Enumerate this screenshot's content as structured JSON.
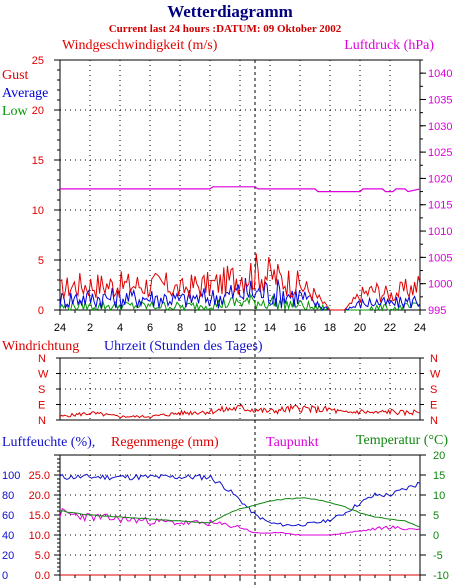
{
  "header": {
    "title": "Wetterdiagramm",
    "subtitle": "Current last 24 hours :DATUM: 09 Oktober 2002"
  },
  "colors": {
    "gust": "#e00000",
    "average": "#0000dd",
    "low": "#009900",
    "pressure": "#dd00dd",
    "direction": "#dd0000",
    "humidity": "#1010cc",
    "rain": "#dd0000",
    "dewpoint": "#dd00dd",
    "temperature": "#118811"
  },
  "chart_data": [
    {
      "type": "line",
      "panel": "wind-pressure",
      "title_left": "Windgeschwindigkeit (m/s)",
      "title_right": "Luftdruck (hPa)",
      "legend": [
        "Gust",
        "Average",
        "Low"
      ],
      "xlabel": "Uhrzeit (Stunden des Tages)",
      "x_ticks": [
        "24",
        "2",
        "4",
        "6",
        "8",
        "10",
        "12",
        "14",
        "16",
        "18",
        "20",
        "22",
        "24"
      ],
      "x_range_hours": [
        0,
        24
      ],
      "ylim_left": [
        0,
        25
      ],
      "ylim_right": [
        995,
        1042.5
      ],
      "y_ticks_left": [
        "0",
        "5",
        "10",
        "15",
        "20",
        "25"
      ],
      "y_ticks_right": [
        "995",
        "1000",
        "1005",
        "1010",
        "1015",
        "1020",
        "1025",
        "1030",
        "1035",
        "1040"
      ],
      "grid": true,
      "series": [
        {
          "name": "Gust",
          "x": [
            0,
            1,
            2,
            3,
            4,
            5,
            6,
            7,
            8,
            9,
            10,
            11,
            12,
            13,
            14,
            15,
            16,
            17,
            18,
            19,
            20,
            21,
            22,
            23,
            24
          ],
          "values": [
            2,
            2.5,
            2.5,
            2.5,
            2.5,
            2.5,
            2.5,
            2.5,
            2,
            2.5,
            2.5,
            2.8,
            3.5,
            3.8,
            3.5,
            3,
            2.5,
            1.5,
            0,
            0,
            1.5,
            2,
            1.5,
            2,
            2.5
          ]
        },
        {
          "name": "Average",
          "x": [
            0,
            1,
            2,
            3,
            4,
            5,
            6,
            7,
            8,
            9,
            10,
            11,
            12,
            13,
            14,
            15,
            16,
            17,
            18,
            19,
            20,
            21,
            22,
            23,
            24
          ],
          "values": [
            1,
            1.2,
            1.2,
            1.2,
            1.2,
            1.2,
            1.2,
            1.2,
            1,
            1.2,
            1.2,
            1.4,
            1.8,
            1.8,
            1.8,
            1.6,
            1.4,
            0.6,
            0,
            0,
            0.6,
            0.8,
            0.6,
            0.8,
            1
          ]
        },
        {
          "name": "Low",
          "x": [
            0,
            1,
            2,
            3,
            4,
            5,
            6,
            7,
            8,
            9,
            10,
            11,
            12,
            13,
            14,
            15,
            16,
            17,
            18,
            19,
            20,
            21,
            22,
            23,
            24
          ],
          "values": [
            0.3,
            0.4,
            0.4,
            0.4,
            0.4,
            0.4,
            0.4,
            0.4,
            0.3,
            0.4,
            0.5,
            0.6,
            0.8,
            0.8,
            0.8,
            0.6,
            0.5,
            0.2,
            0,
            0,
            0,
            0.2,
            0,
            0.2,
            0.3
          ]
        },
        {
          "name": "Luftdruck",
          "axis": "right",
          "x": [
            0,
            10,
            10.2,
            13,
            13.2,
            17,
            17.2,
            20,
            20.2,
            21.5,
            21.7,
            22.2,
            22.4,
            23,
            23.2,
            24
          ],
          "values": [
            1018,
            1018,
            1018.4,
            1018.4,
            1018,
            1018,
            1017.5,
            1017.5,
            1018,
            1018,
            1017.5,
            1017.5,
            1018,
            1018,
            1017.5,
            1018
          ]
        }
      ]
    },
    {
      "type": "line",
      "panel": "wind-direction",
      "title": "Windrichtung",
      "y_ticks": [
        "N",
        "W",
        "S",
        "E",
        "N"
      ],
      "x_range_hours": [
        0,
        24
      ],
      "grid": true,
      "series": [
        {
          "name": "Windrichtung",
          "x": [
            0,
            2,
            4,
            6,
            8,
            10,
            11,
            12,
            13,
            14,
            15,
            16,
            17,
            18,
            19,
            20,
            21,
            22,
            23,
            24
          ],
          "values": [
            20,
            40,
            20,
            20,
            40,
            50,
            60,
            70,
            60,
            50,
            60,
            70,
            60,
            60,
            40,
            50,
            40,
            50,
            40,
            50
          ]
        }
      ]
    },
    {
      "type": "line",
      "panel": "humidity-rain-temperature",
      "title_left": "Luftfeuchte (%),",
      "title_mid": "Regenmenge (mm)",
      "title_dew": "Taupunkt",
      "title_right": "Temperatur (°C)",
      "y_ticks_humidity": [
        "0",
        "20",
        "40",
        "60",
        "80",
        "100"
      ],
      "y_ticks_rain": [
        "0.0",
        "5.0",
        "10.0",
        "15.0",
        "20.0",
        "25.0"
      ],
      "y_ticks_temp": [
        "-10",
        "-5",
        "0",
        "5",
        "10",
        "15",
        "20"
      ],
      "ylim_humidity": [
        0,
        120
      ],
      "ylim_temp": [
        -10,
        20
      ],
      "x_range_hours": [
        0,
        24
      ],
      "grid": true,
      "series": [
        {
          "name": "Luftfeuchte",
          "axis": "humidity",
          "x": [
            0,
            8,
            10,
            11,
            12,
            13,
            14,
            15,
            16,
            17,
            18,
            19,
            20,
            21,
            22,
            23,
            24
          ],
          "values": [
            98,
            98,
            98,
            88,
            75,
            60,
            52,
            50,
            50,
            52,
            55,
            62,
            72,
            80,
            80,
            86,
            92
          ]
        },
        {
          "name": "Taupunkt",
          "axis": "temp",
          "x": [
            0,
            2,
            4,
            6,
            8,
            10,
            11,
            12,
            13,
            14,
            15,
            16,
            17,
            18,
            19,
            20,
            21,
            22,
            23,
            24
          ],
          "values": [
            5.5,
            4.5,
            4,
            3.5,
            3,
            3,
            2.5,
            2,
            0.5,
            0.5,
            0.5,
            0,
            0,
            0,
            0.5,
            1,
            1.5,
            2,
            1.5,
            1.5
          ]
        },
        {
          "name": "Temperatur",
          "axis": "temp",
          "x": [
            0,
            2,
            4,
            6,
            8,
            10,
            11,
            12,
            13,
            14,
            15,
            16,
            17,
            18,
            19,
            20,
            21,
            22,
            23,
            24
          ],
          "values": [
            6,
            5,
            4.5,
            4,
            3.5,
            3,
            5,
            6.5,
            7.5,
            8.5,
            9,
            9.3,
            9,
            8,
            7,
            5.5,
            4.5,
            4,
            3.5,
            2
          ]
        },
        {
          "name": "Regenmenge",
          "axis": "rain",
          "x": [
            0,
            24
          ],
          "values": [
            0,
            0
          ]
        }
      ]
    }
  ]
}
